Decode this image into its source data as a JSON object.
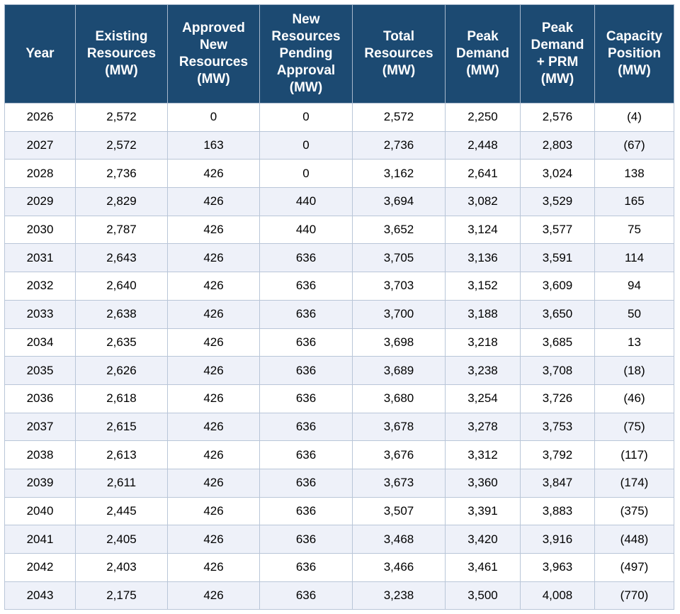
{
  "colors": {
    "header_bg": "#1c4a72",
    "header_text": "#ffffff",
    "alt_row_bg": "#eef1f9",
    "border": "#b9c6d8"
  },
  "table": {
    "headers": [
      [
        "Year"
      ],
      [
        "Existing",
        "Resources",
        "(MW)"
      ],
      [
        "Approved",
        "New",
        "Resources",
        "(MW)"
      ],
      [
        "New",
        "Resources",
        "Pending",
        "Approval",
        "(MW)"
      ],
      [
        "Total",
        "Resources",
        "(MW)"
      ],
      [
        "Peak",
        "Demand",
        "(MW)"
      ],
      [
        "Peak",
        "Demand",
        "+ PRM",
        "(MW)"
      ],
      [
        "Capacity",
        "Position",
        "(MW)"
      ]
    ],
    "rows": [
      [
        "2026",
        "2,572",
        "0",
        "0",
        "2,572",
        "2,250",
        "2,576",
        "(4)"
      ],
      [
        "2027",
        "2,572",
        "163",
        "0",
        "2,736",
        "2,448",
        "2,803",
        "(67)"
      ],
      [
        "2028",
        "2,736",
        "426",
        "0",
        "3,162",
        "2,641",
        "3,024",
        "138"
      ],
      [
        "2029",
        "2,829",
        "426",
        "440",
        "3,694",
        "3,082",
        "3,529",
        "165"
      ],
      [
        "2030",
        "2,787",
        "426",
        "440",
        "3,652",
        "3,124",
        "3,577",
        "75"
      ],
      [
        "2031",
        "2,643",
        "426",
        "636",
        "3,705",
        "3,136",
        "3,591",
        "114"
      ],
      [
        "2032",
        "2,640",
        "426",
        "636",
        "3,703",
        "3,152",
        "3,609",
        "94"
      ],
      [
        "2033",
        "2,638",
        "426",
        "636",
        "3,700",
        "3,188",
        "3,650",
        "50"
      ],
      [
        "2034",
        "2,635",
        "426",
        "636",
        "3,698",
        "3,218",
        "3,685",
        "13"
      ],
      [
        "2035",
        "2,626",
        "426",
        "636",
        "3,689",
        "3,238",
        "3,708",
        "(18)"
      ],
      [
        "2036",
        "2,618",
        "426",
        "636",
        "3,680",
        "3,254",
        "3,726",
        "(46)"
      ],
      [
        "2037",
        "2,615",
        "426",
        "636",
        "3,678",
        "3,278",
        "3,753",
        "(75)"
      ],
      [
        "2038",
        "2,613",
        "426",
        "636",
        "3,676",
        "3,312",
        "3,792",
        "(117)"
      ],
      [
        "2039",
        "2,611",
        "426",
        "636",
        "3,673",
        "3,360",
        "3,847",
        "(174)"
      ],
      [
        "2040",
        "2,445",
        "426",
        "636",
        "3,507",
        "3,391",
        "3,883",
        "(375)"
      ],
      [
        "2041",
        "2,405",
        "426",
        "636",
        "3,468",
        "3,420",
        "3,916",
        "(448)"
      ],
      [
        "2042",
        "2,403",
        "426",
        "636",
        "3,466",
        "3,461",
        "3,963",
        "(497)"
      ],
      [
        "2043",
        "2,175",
        "426",
        "636",
        "3,238",
        "3,500",
        "4,008",
        "(770)"
      ]
    ]
  }
}
